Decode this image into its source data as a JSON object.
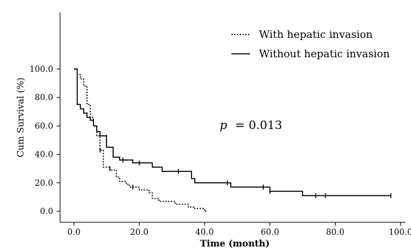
{
  "chart_data": {
    "type": "line",
    "title": "",
    "xlabel": "Time (month)",
    "ylabel": "Cum Survival (%)",
    "xlim": [
      0,
      100
    ],
    "ylim": [
      0,
      100
    ],
    "xticks": [
      "0.0",
      "20.0",
      "40.0",
      "60.0",
      "80.0",
      "100.0"
    ],
    "yticks": [
      "0.0",
      "20.0",
      "40.0",
      "60.0",
      "80.0",
      "100.0"
    ],
    "grid": false,
    "legend_placement": "top-right",
    "annotation": {
      "p_symbol": "p",
      "p_text": "= 0.013"
    },
    "series": [
      {
        "name": "With hepatic invasion",
        "style": "dotted",
        "color": "#000000",
        "steps": [
          [
            0,
            100
          ],
          [
            1,
            100
          ],
          [
            1,
            96
          ],
          [
            2,
            96
          ],
          [
            2,
            93
          ],
          [
            3,
            93
          ],
          [
            3,
            88
          ],
          [
            4,
            88
          ],
          [
            4,
            75
          ],
          [
            5,
            75
          ],
          [
            5,
            66
          ],
          [
            6,
            66
          ],
          [
            6,
            60
          ],
          [
            7,
            60
          ],
          [
            7,
            53
          ],
          [
            8,
            53
          ],
          [
            8,
            43
          ],
          [
            9,
            43
          ],
          [
            9,
            31
          ],
          [
            11,
            31
          ],
          [
            11,
            29
          ],
          [
            13,
            29
          ],
          [
            13,
            24
          ],
          [
            14,
            24
          ],
          [
            14,
            21
          ],
          [
            16,
            21
          ],
          [
            16,
            19
          ],
          [
            17,
            19
          ],
          [
            17,
            17
          ],
          [
            20,
            17
          ],
          [
            20,
            15
          ],
          [
            23,
            15
          ],
          [
            23,
            13
          ],
          [
            24,
            13
          ],
          [
            24,
            9
          ],
          [
            26,
            9
          ],
          [
            26,
            7
          ],
          [
            31,
            7
          ],
          [
            31,
            5
          ],
          [
            35,
            5
          ],
          [
            35,
            3
          ],
          [
            37,
            3
          ],
          [
            37,
            2
          ],
          [
            40,
            2
          ],
          [
            40,
            0
          ],
          [
            41,
            0
          ]
        ],
        "censored": [
          [
            8,
            43
          ],
          [
            11,
            30
          ],
          [
            18,
            17
          ]
        ]
      },
      {
        "name": "Without hepatic invasion",
        "style": "solid",
        "color": "#000000",
        "steps": [
          [
            0,
            100
          ],
          [
            1,
            100
          ],
          [
            1,
            75
          ],
          [
            2,
            75
          ],
          [
            2,
            72
          ],
          [
            3,
            72
          ],
          [
            3,
            69
          ],
          [
            4,
            69
          ],
          [
            4,
            66
          ],
          [
            5,
            66
          ],
          [
            5,
            64
          ],
          [
            6,
            64
          ],
          [
            6,
            60
          ],
          [
            7,
            60
          ],
          [
            7,
            56
          ],
          [
            8,
            56
          ],
          [
            8,
            53
          ],
          [
            10,
            53
          ],
          [
            10,
            45
          ],
          [
            12,
            45
          ],
          [
            12,
            38
          ],
          [
            14,
            38
          ],
          [
            14,
            36
          ],
          [
            18,
            36
          ],
          [
            18,
            34
          ],
          [
            24,
            34
          ],
          [
            24,
            31
          ],
          [
            27,
            31
          ],
          [
            27,
            28
          ],
          [
            36,
            28
          ],
          [
            36,
            23
          ],
          [
            37,
            23
          ],
          [
            37,
            20
          ],
          [
            48,
            20
          ],
          [
            48,
            17
          ],
          [
            60,
            17
          ],
          [
            60,
            14
          ],
          [
            70,
            14
          ],
          [
            70,
            11
          ],
          [
            97,
            11
          ]
        ],
        "censored": [
          [
            10,
            52
          ],
          [
            15,
            36
          ],
          [
            20,
            34
          ],
          [
            32,
            28
          ],
          [
            47,
            20
          ],
          [
            58,
            17
          ],
          [
            60,
            14
          ],
          [
            74,
            11
          ],
          [
            77,
            11
          ],
          [
            97,
            11
          ]
        ]
      }
    ]
  }
}
